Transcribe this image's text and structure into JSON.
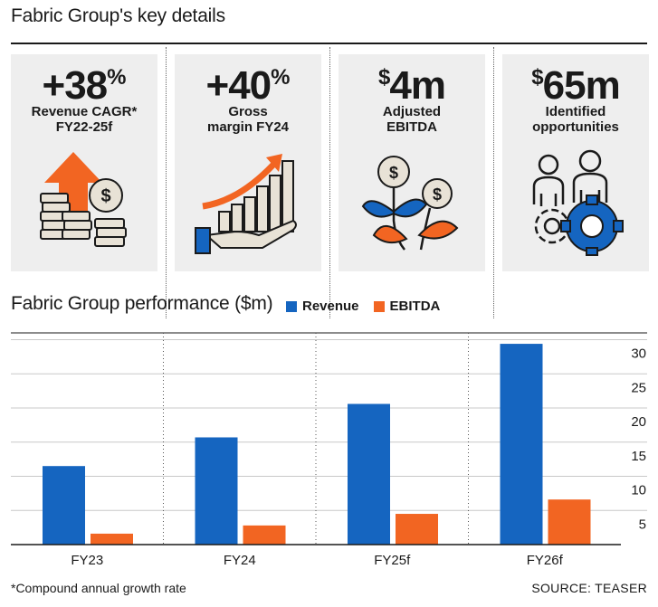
{
  "header": {
    "title": "Fabric Group's key details"
  },
  "cards": [
    {
      "prefix": "",
      "value": "+38",
      "suffix": "%",
      "label_line1": "Revenue CAGR*",
      "label_line2": "FY22-25f",
      "icon": "coins-arrow-up-icon"
    },
    {
      "prefix": "",
      "value": "+40",
      "suffix": "%",
      "label_line1": "Gross",
      "label_line2": "margin FY24",
      "icon": "hand-growth-chart-icon"
    },
    {
      "prefix": "$",
      "value": "4m",
      "suffix": "",
      "label_line1": "Adjusted",
      "label_line2": "EBITDA",
      "icon": "money-plant-icon"
    },
    {
      "prefix": "$",
      "value": "65m",
      "suffix": "",
      "label_line1": "Identified",
      "label_line2": "opportunities",
      "icon": "people-gear-icon"
    }
  ],
  "colors": {
    "revenue": "#1565c0",
    "ebitda": "#f26522",
    "card_bg": "#eeeeee",
    "accent_orange": "#f26522",
    "accent_blue": "#1565c0"
  },
  "chart_data": {
    "type": "bar",
    "title": "Fabric Group performance ($m)",
    "categories": [
      "FY23",
      "FY24",
      "FY25f",
      "FY26f"
    ],
    "series": [
      {
        "name": "Revenue",
        "values": [
          11.5,
          15.7,
          20.6,
          29.4
        ]
      },
      {
        "name": "EBITDA",
        "values": [
          1.6,
          2.8,
          4.5,
          6.6
        ]
      }
    ],
    "yticks": [
      "5",
      "10",
      "15",
      "20",
      "25",
      "30"
    ],
    "ylim": [
      0,
      31
    ],
    "grid": true,
    "y_axis_side": "right",
    "legend": "top"
  },
  "footer": {
    "footnote": "*Compound annual growth rate",
    "source": "SOURCE: TEASER"
  }
}
